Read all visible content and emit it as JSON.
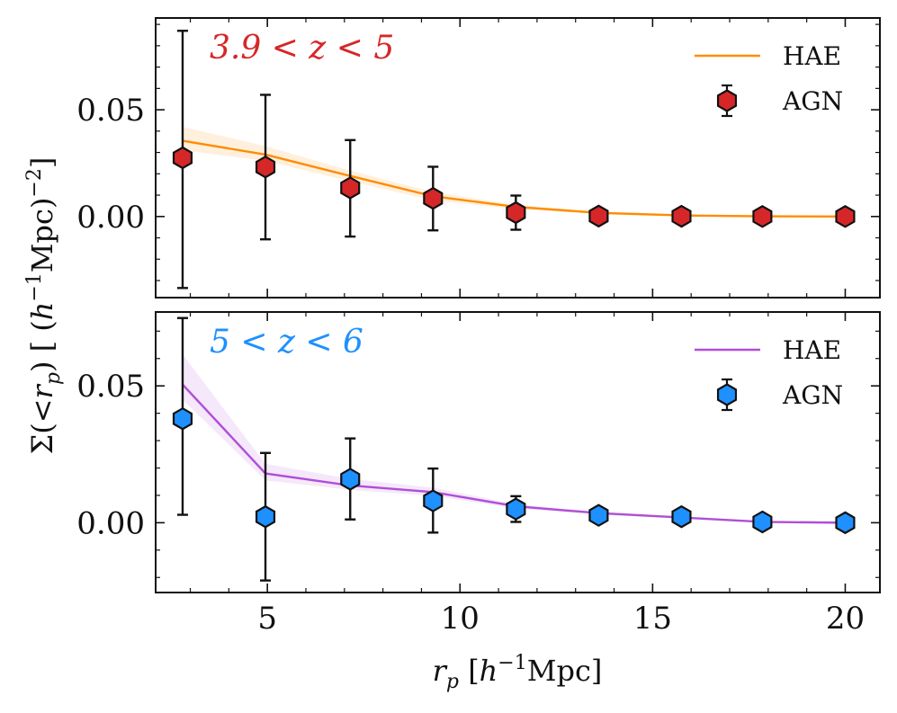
{
  "chart_data": [
    {
      "type": "line",
      "panel": "top",
      "annotation": "3.9 < z < 5",
      "annotation_color": "#d62728",
      "xlabel": "r_p [h^-1 Mpc]",
      "ylabel": "Σ(< r_p) [ (h^-1 Mpc)^-2 ]",
      "xlim": [
        2.1,
        20.9
      ],
      "ylim": [
        -0.038,
        0.093
      ],
      "x_ticks": [
        5,
        10,
        15,
        20
      ],
      "x_tick_labels": [
        "5",
        "10",
        "15",
        "20"
      ],
      "y_ticks": [
        0.0,
        0.05
      ],
      "y_tick_labels": [
        "0.00",
        "0.05"
      ],
      "legend_position": "top-right",
      "series": [
        {
          "name": "HAE",
          "kind": "line",
          "color": "#ff8c00",
          "x": [
            2.8,
            4.95,
            7.15,
            9.3,
            11.45,
            13.6,
            15.75,
            17.85,
            20.0
          ],
          "y": [
            0.0355,
            0.029,
            0.019,
            0.0095,
            0.0045,
            0.0017,
            0.0005,
            0.0001,
            0.0
          ],
          "band_low": [
            0.031,
            0.026,
            0.0165,
            0.0075,
            0.0035,
            0.0012,
            0.0003,
            0.0,
            0.0
          ],
          "band_high": [
            0.042,
            0.033,
            0.0215,
            0.0115,
            0.0055,
            0.0022,
            0.0007,
            0.0002,
            0.0001
          ]
        },
        {
          "name": "AGN",
          "kind": "errorbar",
          "color": "#d62728",
          "x": [
            2.8,
            4.95,
            7.15,
            9.3,
            11.45,
            13.6,
            15.75,
            17.85,
            20.0
          ],
          "y": [
            0.0275,
            0.0232,
            0.0134,
            0.0085,
            0.0018,
            0.0002,
            0.0001,
            0.0,
            0.0
          ],
          "yerr_low": [
            -0.0335,
            -0.0107,
            -0.0094,
            -0.0065,
            -0.0062,
            0.0002,
            0.0001,
            0.0,
            0.0
          ],
          "yerr_high": [
            0.087,
            0.057,
            0.0358,
            0.0233,
            0.0098,
            0.0002,
            0.0001,
            0.0,
            0.0
          ]
        }
      ]
    },
    {
      "type": "line",
      "panel": "bottom",
      "annotation": "5 < z < 6",
      "annotation_color": "#1e90ff",
      "xlabel": "r_p [h^-1 Mpc]",
      "ylabel": "Σ(< r_p) [ (h^-1 Mpc)^-2 ]",
      "xlim": [
        2.1,
        20.9
      ],
      "ylim": [
        -0.0255,
        0.077
      ],
      "x_ticks": [
        5,
        10,
        15,
        20
      ],
      "x_tick_labels": [
        "5",
        "10",
        "15",
        "20"
      ],
      "y_ticks": [
        0.0,
        0.05
      ],
      "y_tick_labels": [
        "0.00",
        "0.05"
      ],
      "legend_position": "top-right",
      "series": [
        {
          "name": "HAE",
          "kind": "line",
          "color": "#b04ed8",
          "x": [
            2.8,
            4.95,
            7.15,
            9.3,
            11.45,
            13.6,
            15.75,
            17.85,
            20.0
          ],
          "y": [
            0.0505,
            0.018,
            0.0136,
            0.0112,
            0.006,
            0.0035,
            0.0019,
            0.0003,
            0.0
          ],
          "band_low": [
            0.045,
            0.0155,
            0.012,
            0.0098,
            0.0052,
            0.003,
            0.0015,
            0.0001,
            0.0
          ],
          "band_high": [
            0.0615,
            0.0215,
            0.016,
            0.0128,
            0.0068,
            0.004,
            0.0023,
            0.0005,
            0.0001
          ]
        },
        {
          "name": "AGN",
          "kind": "errorbar",
          "color": "#1e90ff",
          "x": [
            2.8,
            4.95,
            7.15,
            9.3,
            11.45,
            13.6,
            15.75,
            17.85,
            20.0
          ],
          "y": [
            0.038,
            0.0022,
            0.0159,
            0.008,
            0.005,
            0.0027,
            0.0022,
            0.0003,
            0.0
          ],
          "yerr_low": [
            0.0029,
            -0.0211,
            0.0012,
            -0.0036,
            0.0003,
            0.0027,
            0.0022,
            0.0003,
            0.0
          ],
          "yerr_high": [
            0.0748,
            0.0255,
            0.0308,
            0.0198,
            0.0097,
            0.0027,
            0.0022,
            0.0003,
            0.0
          ]
        }
      ]
    }
  ]
}
